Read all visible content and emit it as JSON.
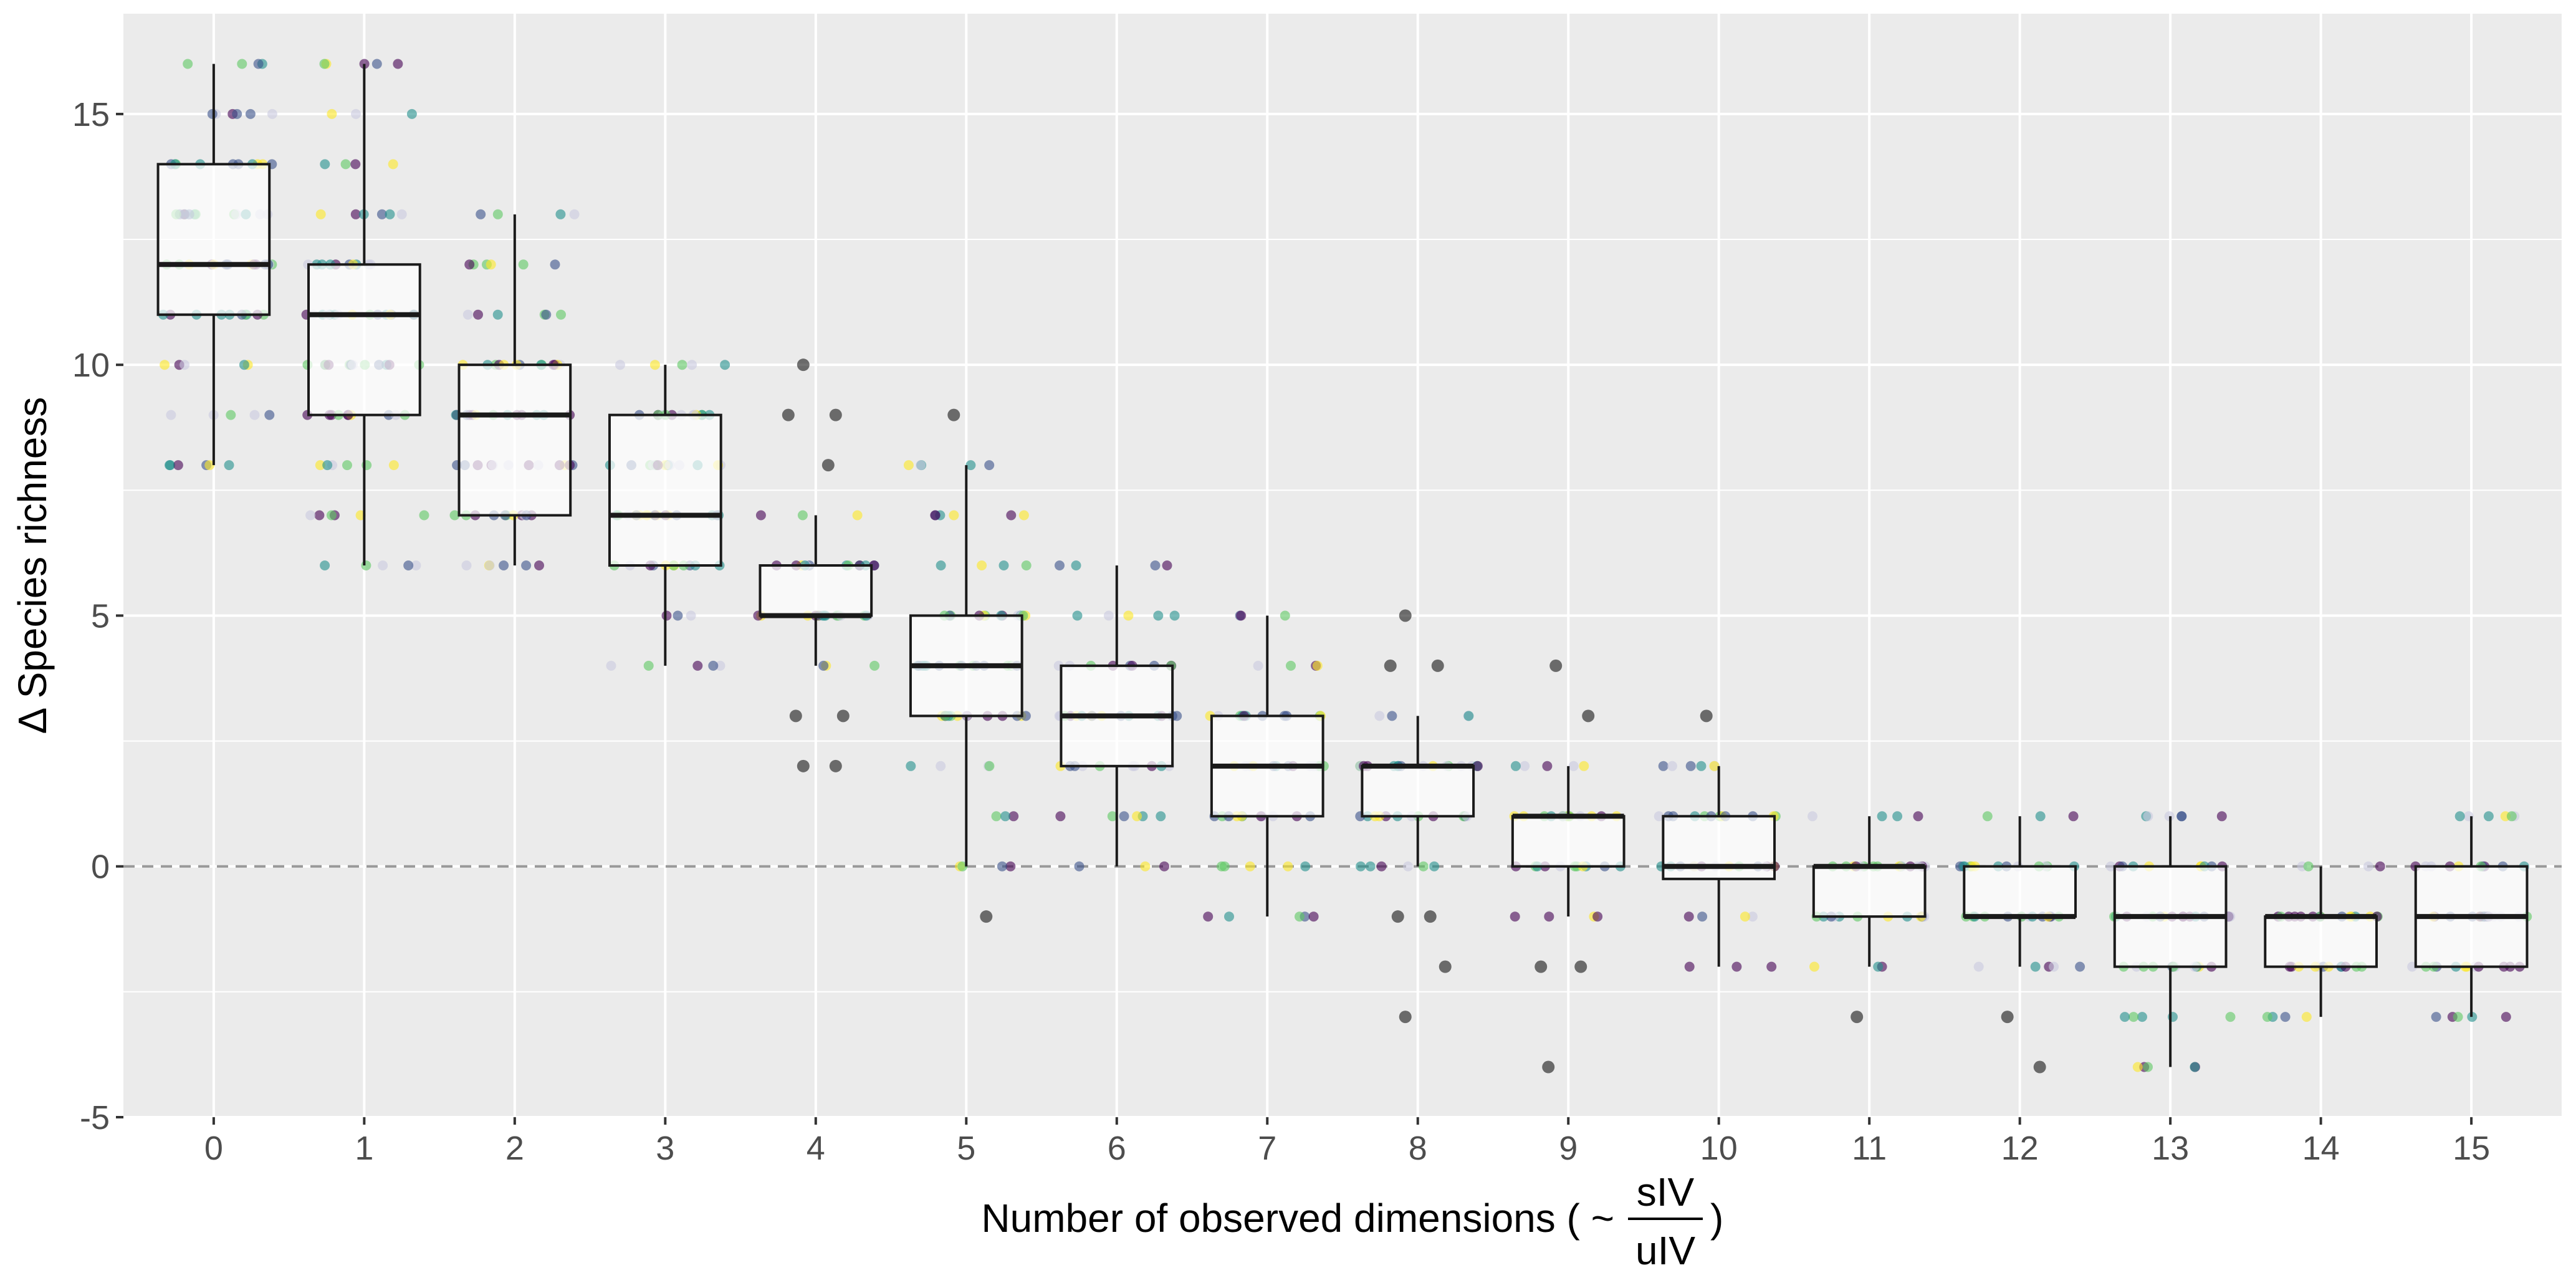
{
  "chart_data": {
    "type": "box",
    "xlabel": {
      "prefix": "Number of observed dimensions ( ~",
      "fraction_numerator": "sIV",
      "fraction_denominator": "uIV",
      "suffix": ")"
    },
    "ylabel": "Δ Species richness",
    "ylim": [
      -5,
      17
    ],
    "y_ticks": [
      -5,
      0,
      5,
      10,
      15
    ],
    "reference_line": {
      "y": 0,
      "style": "dashed"
    },
    "grid": true,
    "legend": "none",
    "categories": [
      "0",
      "1",
      "2",
      "3",
      "4",
      "5",
      "6",
      "7",
      "8",
      "9",
      "10",
      "11",
      "12",
      "13",
      "14",
      "15"
    ],
    "boxes": [
      {
        "category": "0",
        "q1": 11,
        "median": 12,
        "q3": 14,
        "whisker_low": 8,
        "whisker_high": 16
      },
      {
        "category": "1",
        "q1": 9,
        "median": 11,
        "q3": 12,
        "whisker_low": 6,
        "whisker_high": 16
      },
      {
        "category": "2",
        "q1": 7,
        "median": 9,
        "q3": 10,
        "whisker_low": 6,
        "whisker_high": 13
      },
      {
        "category": "3",
        "q1": 6,
        "median": 7,
        "q3": 9,
        "whisker_low": 4,
        "whisker_high": 10
      },
      {
        "category": "4",
        "q1": 5,
        "median": 5,
        "q3": 6,
        "whisker_low": 4,
        "whisker_high": 7
      },
      {
        "category": "5",
        "q1": 3,
        "median": 4,
        "q3": 5,
        "whisker_low": 0,
        "whisker_high": 8
      },
      {
        "category": "6",
        "q1": 2,
        "median": 3,
        "q3": 4,
        "whisker_low": 0,
        "whisker_high": 6
      },
      {
        "category": "7",
        "q1": 1,
        "median": 2,
        "q3": 3,
        "whisker_low": -1,
        "whisker_high": 5
      },
      {
        "category": "8",
        "q1": 1,
        "median": 2,
        "q3": 2,
        "whisker_low": 0,
        "whisker_high": 3
      },
      {
        "category": "9",
        "q1": 0,
        "median": 1,
        "q3": 1,
        "whisker_low": -1,
        "whisker_high": 2
      },
      {
        "category": "10",
        "q1": -0.25,
        "median": 0,
        "q3": 1,
        "whisker_low": -2,
        "whisker_high": 2
      },
      {
        "category": "11",
        "q1": -1,
        "median": 0,
        "q3": 0,
        "whisker_low": -2,
        "whisker_high": 1
      },
      {
        "category": "12",
        "q1": -1,
        "median": -1,
        "q3": 0,
        "whisker_low": -2,
        "whisker_high": 1
      },
      {
        "category": "13",
        "q1": -2,
        "median": -1,
        "q3": 0,
        "whisker_low": -4,
        "whisker_high": 1
      },
      {
        "category": "14",
        "q1": -2,
        "median": -1,
        "q3": -1,
        "whisker_low": -3,
        "whisker_high": 0
      },
      {
        "category": "15",
        "q1": -2,
        "median": -1,
        "q3": 0,
        "whisker_low": -3,
        "whisker_high": 1
      }
    ],
    "outliers": [
      {
        "category": "4",
        "values": [
          10,
          9,
          9,
          8,
          3,
          3,
          2,
          2
        ]
      },
      {
        "category": "5",
        "values": [
          9,
          -1
        ]
      },
      {
        "category": "8",
        "values": [
          5,
          4,
          4,
          -1,
          -1,
          -2,
          -3
        ]
      },
      {
        "category": "9",
        "values": [
          4,
          3,
          -2,
          -2,
          -4
        ]
      },
      {
        "category": "10",
        "values": [
          3
        ]
      },
      {
        "category": "11",
        "values": [
          -3
        ]
      },
      {
        "category": "12",
        "values": [
          -3,
          -4
        ]
      }
    ],
    "jitter_colors": [
      "#440154",
      "#3b528b",
      "#21908c",
      "#5dc863",
      "#fde725",
      "#c9c9e0"
    ]
  }
}
